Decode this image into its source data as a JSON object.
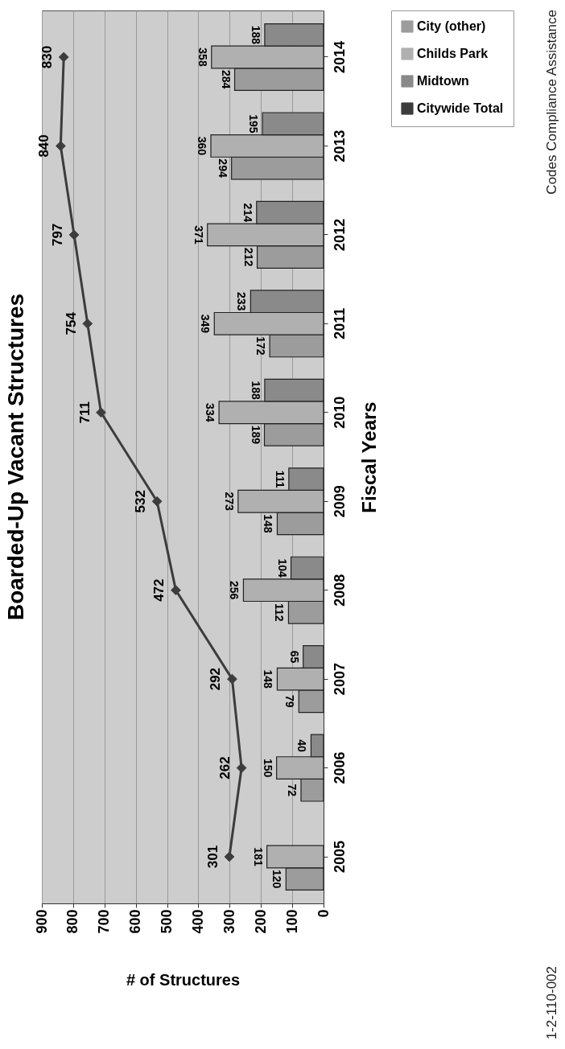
{
  "chart_data": {
    "type": "bar",
    "orientation": "horizontal",
    "title": "Boarded-Up Vacant Structures",
    "xlabel": "# of Structures",
    "ylabel": "Fiscal Years",
    "categories": [
      "2014",
      "2013",
      "2012",
      "2011",
      "2010",
      "2009",
      "2008",
      "2007",
      "2006",
      "2005"
    ],
    "series": [
      {
        "name": "City (other)",
        "color": "#9c9c9c",
        "values": [
          284,
          294,
          212,
          172,
          189,
          148,
          112,
          79,
          72,
          120
        ]
      },
      {
        "name": "Childs Park",
        "color": "#b0b0b0",
        "values": [
          358,
          360,
          371,
          349,
          334,
          273,
          256,
          148,
          150,
          181
        ]
      },
      {
        "name": "Midtown",
        "color": "#8a8a8a",
        "values": [
          188,
          195,
          214,
          233,
          188,
          111,
          104,
          65,
          40,
          null
        ]
      },
      {
        "name": "Citywide Total",
        "type": "line",
        "color": "#3c3c3c",
        "values": [
          830,
          840,
          797,
          754,
          711,
          532,
          472,
          292,
          262,
          301
        ]
      }
    ],
    "xlim": [
      900,
      0
    ],
    "xticks": [
      900,
      800,
      700,
      600,
      500,
      400,
      300,
      200,
      100,
      0
    ],
    "grid": "x",
    "legend": "right",
    "marker": "diamond",
    "data_labels": true,
    "annotations": [
      "1-2-110-002",
      "Codes Compliance Assistance"
    ]
  }
}
